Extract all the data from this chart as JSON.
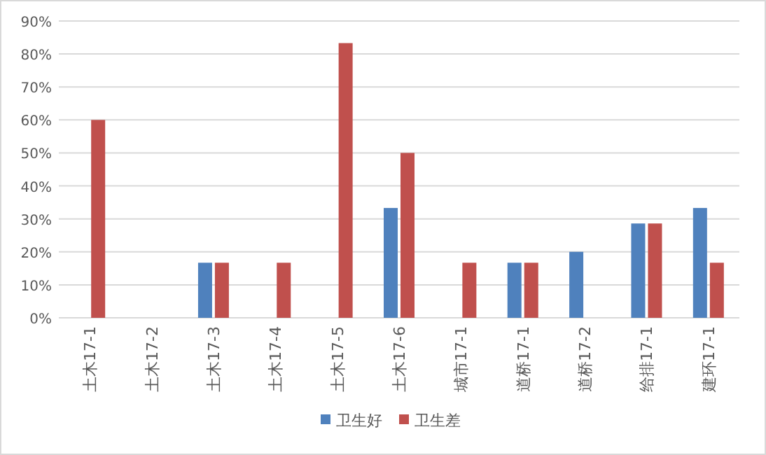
{
  "chart_data": {
    "type": "bar",
    "categories": [
      "土木17-1",
      "土木17-2",
      "土木17-3",
      "土木17-4",
      "土木17-5",
      "土木17-6",
      "城市17-1",
      "道桥17-1",
      "道桥17-2",
      "给排17-1",
      "建环17-1"
    ],
    "series": [
      {
        "name": "卫生好",
        "color": "#4f81bd",
        "values": [
          0,
          0,
          16.7,
          0,
          0,
          33.3,
          0,
          16.7,
          20,
          28.6,
          33.3
        ]
      },
      {
        "name": "卫生差",
        "color": "#c0504d",
        "values": [
          60,
          0,
          16.7,
          16.7,
          83.3,
          50,
          16.7,
          16.7,
          0,
          28.6,
          16.7
        ]
      }
    ],
    "ylim": [
      0,
      90
    ],
    "yticks": [
      {
        "value": 0,
        "label": "0%"
      },
      {
        "value": 10,
        "label": "10%"
      },
      {
        "value": 20,
        "label": "20%"
      },
      {
        "value": 30,
        "label": "30%"
      },
      {
        "value": 40,
        "label": "40%"
      },
      {
        "value": 50,
        "label": "50%"
      },
      {
        "value": 60,
        "label": "60%"
      },
      {
        "value": 70,
        "label": "70%"
      },
      {
        "value": 80,
        "label": "80%"
      },
      {
        "value": 90,
        "label": "90%"
      }
    ],
    "grid": "y",
    "legend": "bottom"
  }
}
